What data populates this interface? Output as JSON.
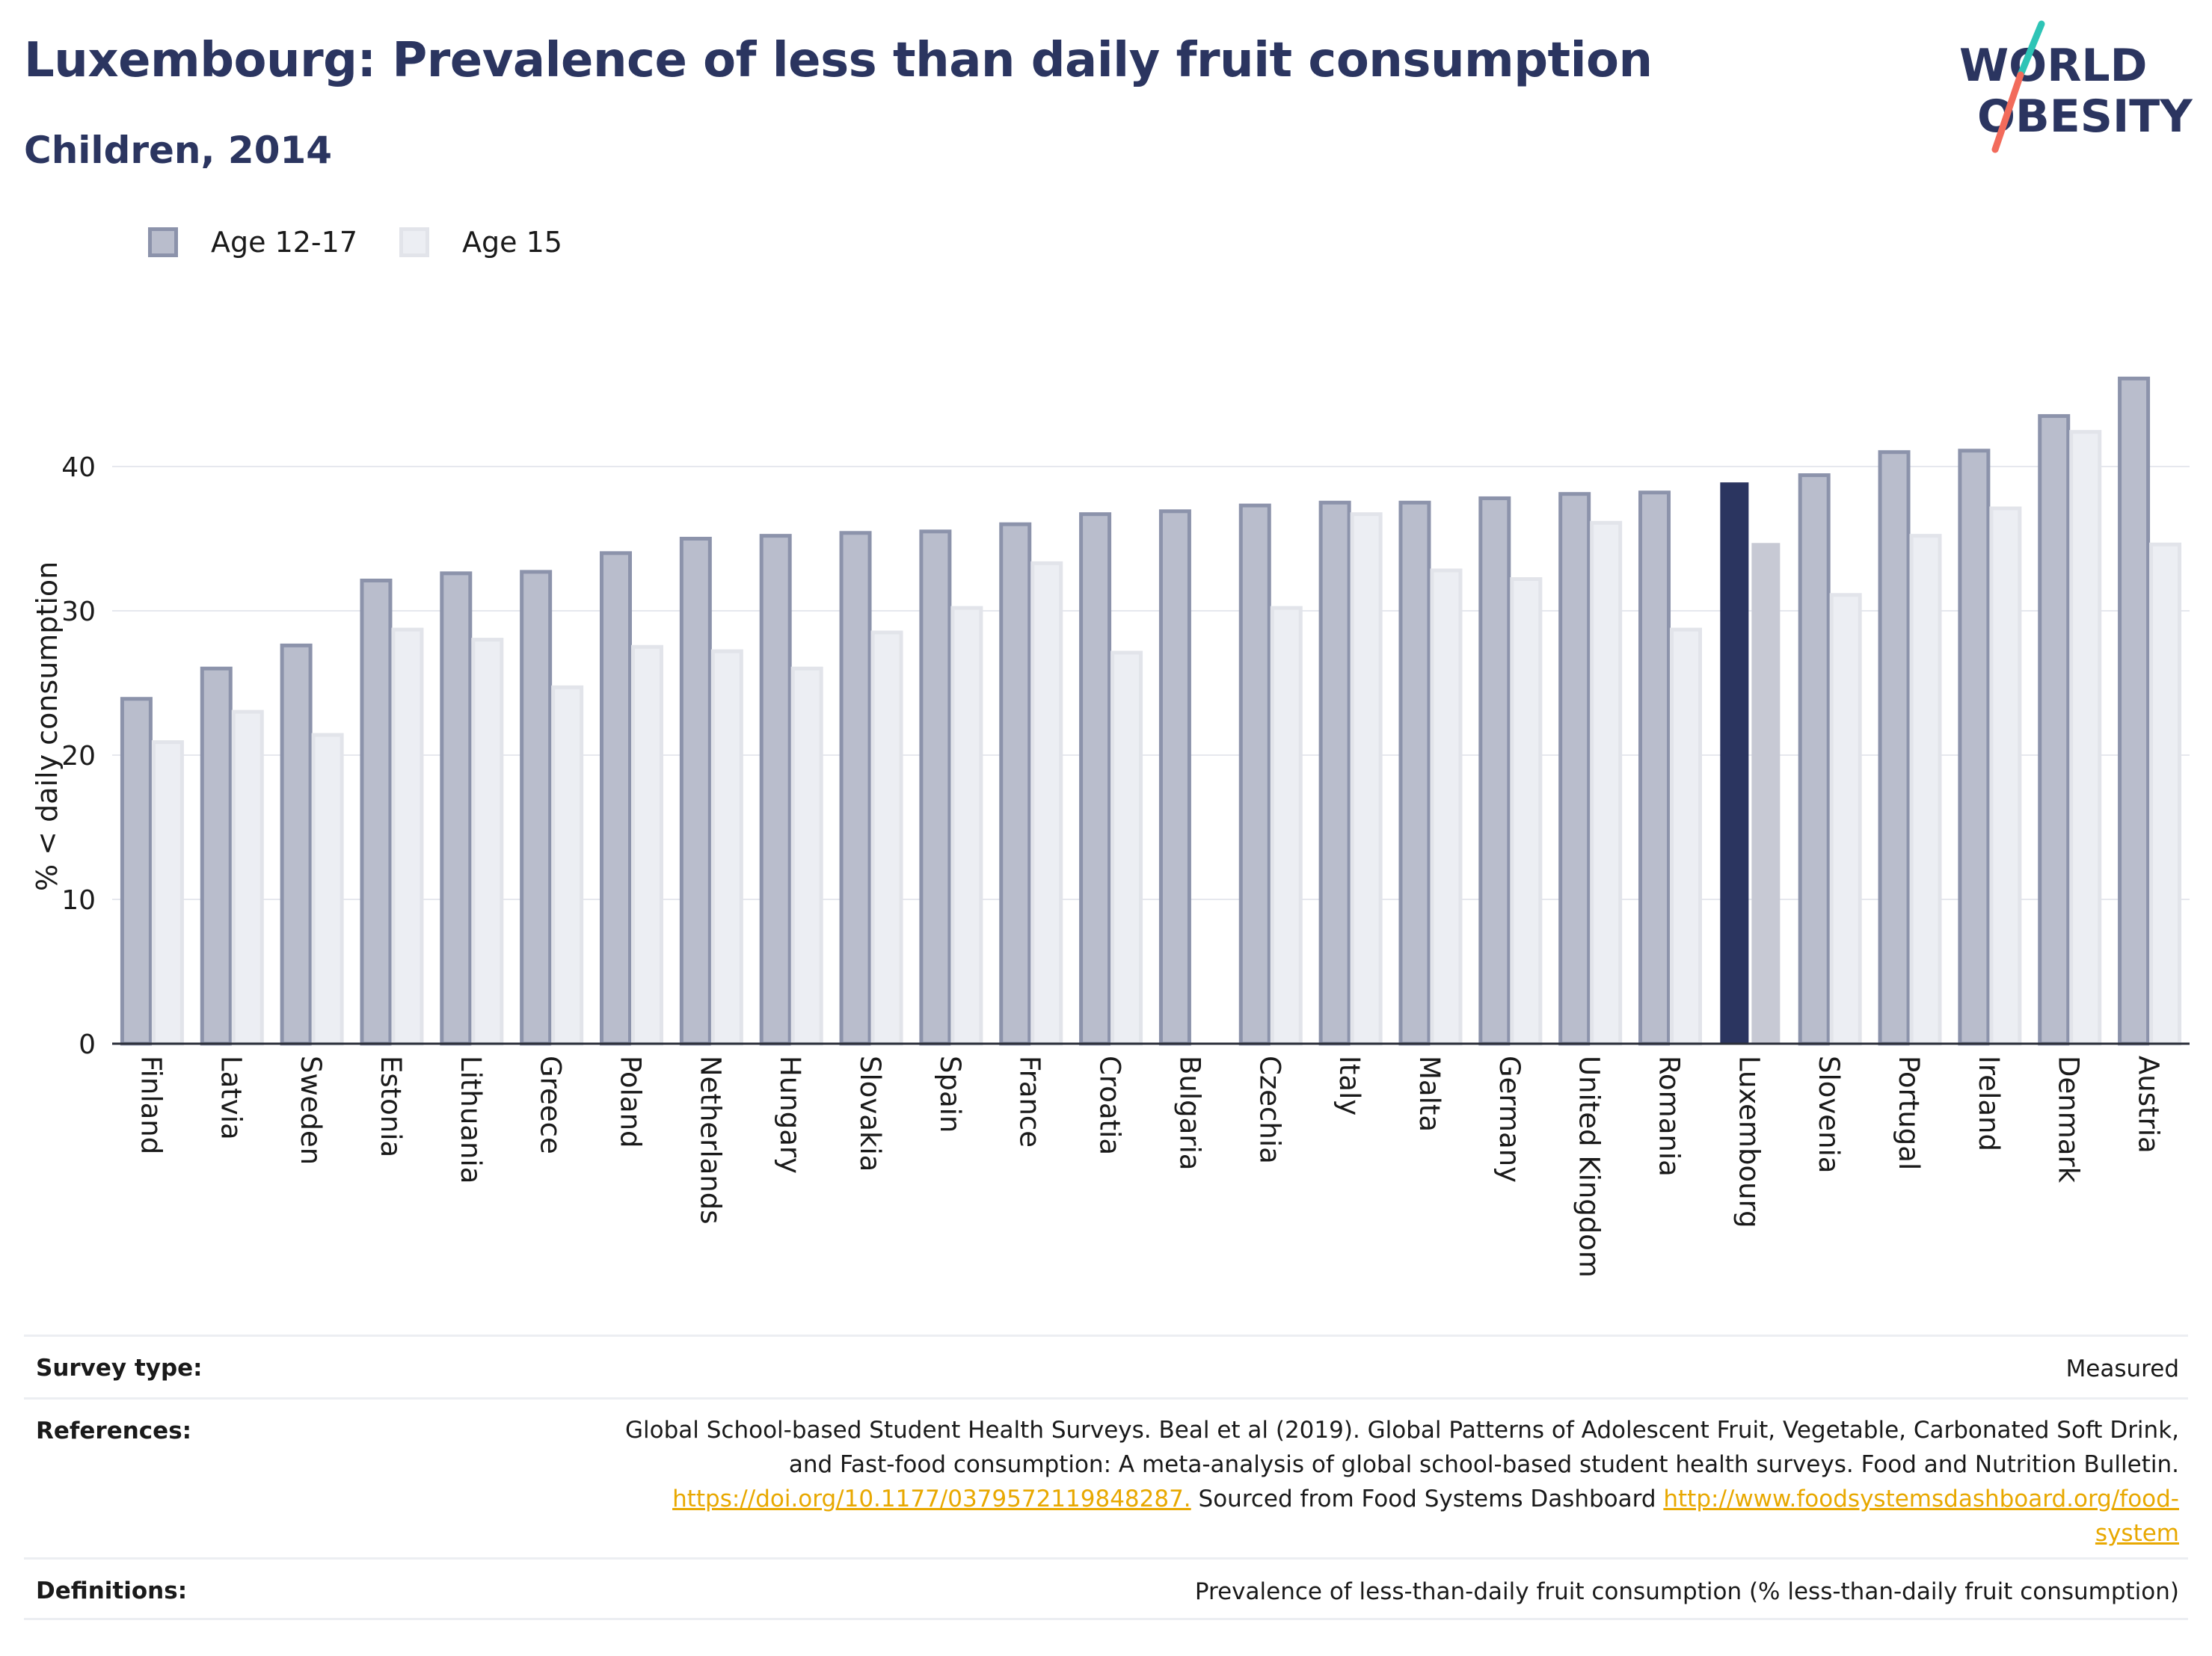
{
  "header": {
    "title": "Luxembourg: Prevalence of less than daily fruit consumption",
    "subtitle": "Children, 2014",
    "logo_line1": "WORLD",
    "logo_line2": "OBESITY"
  },
  "colors": {
    "title": "#2b3560",
    "series1_fill": "#b9bdcc",
    "series1_stroke": "#8c93ab",
    "series2_fill": "#eceef3",
    "series2_stroke": "#e2e4ea",
    "highlight1": "#2b3560",
    "highlight2": "#c7c9d4",
    "logo_teal": "#2ec4b6",
    "logo_coral": "#f26b5b",
    "link": "#e8a800"
  },
  "chart_data": {
    "type": "bar",
    "title": "Luxembourg: Prevalence of less than daily fruit consumption",
    "subtitle": "Children, 2014",
    "xlabel": "",
    "ylabel": "% < daily consumption",
    "ylim": [
      0,
      48
    ],
    "yticks": [
      0,
      10,
      20,
      30,
      40
    ],
    "grid": true,
    "legend_position": "top-left",
    "highlight_category": "Luxembourg",
    "categories": [
      "Finland",
      "Latvia",
      "Sweden",
      "Estonia",
      "Lithuania",
      "Greece",
      "Poland",
      "Netherlands",
      "Hungary",
      "Slovakia",
      "Spain",
      "France",
      "Croatia",
      "Bulgaria",
      "Czechia",
      "Italy",
      "Malta",
      "Germany",
      "United Kingdom",
      "Romania",
      "Luxembourg",
      "Slovenia",
      "Portugal",
      "Ireland",
      "Denmark",
      "Austria"
    ],
    "series": [
      {
        "name": "Age 12-17",
        "values": [
          23.9,
          26.0,
          27.6,
          32.1,
          32.6,
          32.7,
          34.0,
          35.0,
          35.2,
          35.4,
          35.5,
          36.0,
          36.7,
          36.9,
          37.3,
          37.5,
          37.5,
          37.8,
          38.1,
          38.2,
          38.9,
          39.4,
          41.0,
          41.1,
          43.5,
          46.1
        ]
      },
      {
        "name": "Age 15",
        "values": [
          20.9,
          23.0,
          21.4,
          28.7,
          28.0,
          24.7,
          27.5,
          27.2,
          26.0,
          28.5,
          30.2,
          33.3,
          27.1,
          null,
          30.2,
          36.7,
          32.8,
          32.2,
          36.1,
          28.7,
          34.7,
          31.1,
          35.2,
          37.1,
          42.4,
          34.6
        ]
      }
    ]
  },
  "info": {
    "survey_label": "Survey type:",
    "survey_value": "Measured",
    "references_label": "References:",
    "references_line1": "Global School-based Student Health Surveys. Beal et al (2019). Global Patterns of Adolescent Fruit, Vegetable, Carbonated Soft Drink,",
    "references_line2": "and Fast-food consumption: A meta-analysis of global school-based student health surveys. Food and Nutrition Bulletin.",
    "references_link1": "https://doi.org/10.1177/0379572119848287.",
    "references_mid": " Sourced from Food Systems Dashboard ",
    "references_link2a": "http://www.foodsystemsdashboard.org/food-",
    "references_link2b": "system",
    "definitions_label": "Definitions:",
    "definitions_value": "Prevalence of less-than-daily fruit consumption (% less-than-daily fruit consumption)"
  }
}
